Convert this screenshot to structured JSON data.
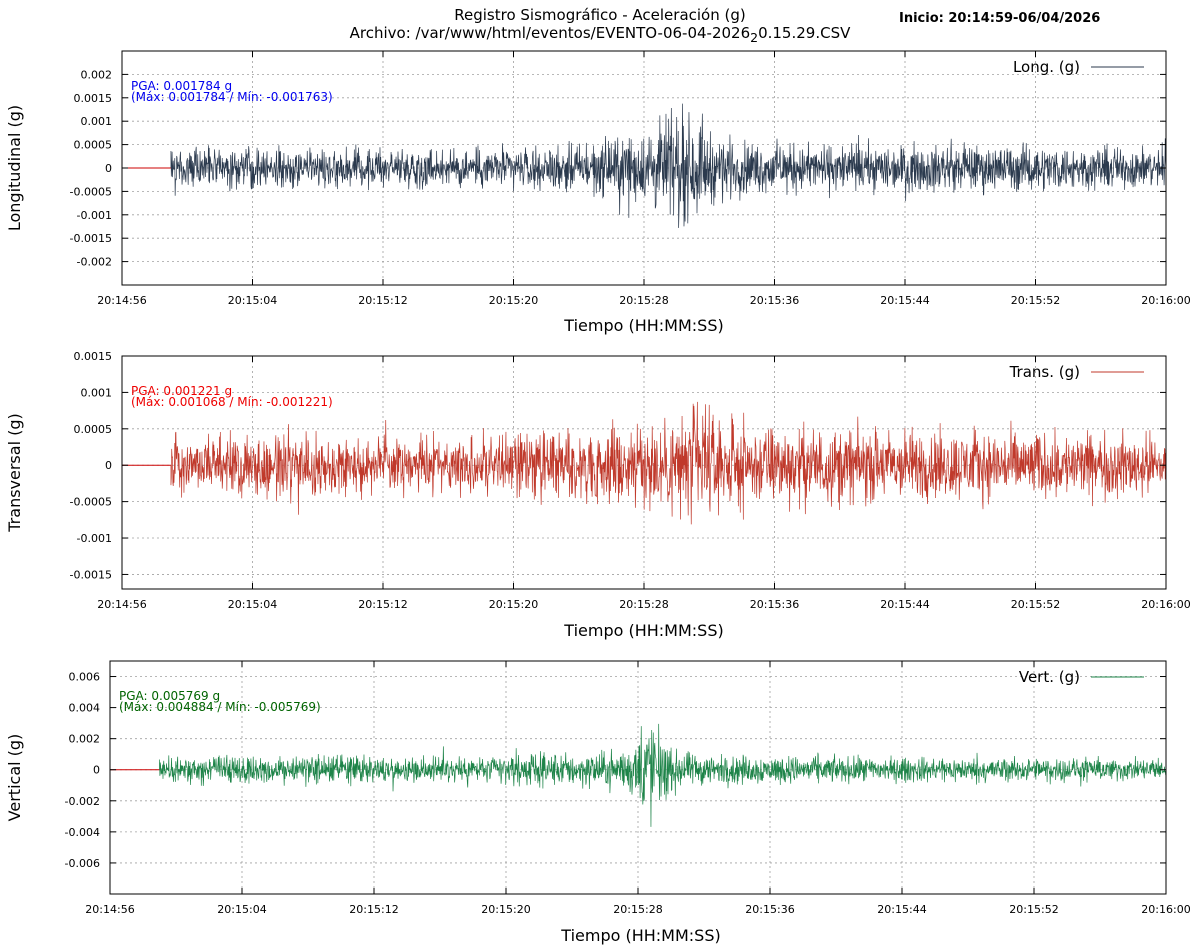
{
  "header": {
    "title_line1": "Registro Sismográfico - Aceleración (g)",
    "title_line2_main": "Archivo: /var/www/html/eventos/EVENTO-06-04-2026",
    "title_line2_sub": "2",
    "title_line2_tail": "0.15.29.CSV",
    "start_label": "Inicio: 20:14:59-06/04/2026"
  },
  "colors": {
    "longitudinal": "#2b3a4e",
    "transversal": "#c0392b",
    "vertical": "#1e8449",
    "pre_event": "#cc0000",
    "long_annotation": "#0000ee",
    "trans_annotation": "#ee0000",
    "vert_annotation": "#006400"
  },
  "chart_data": [
    {
      "type": "line",
      "name_key": "longitudinal",
      "ylabel": "Longitudinal (g)",
      "xlabel": "Tiempo (HH:MM:SS)",
      "legend": "Long. (g)",
      "legend_position": "top-right",
      "annotation_pga": "PGA: 0.001784 g",
      "annotation_range": "(Máx: 0.001784 / Mín: -0.001763)",
      "pga": 0.001784,
      "max": 0.001784,
      "min": -0.001763,
      "ylim": [
        -0.0025,
        0.0025
      ],
      "yticks": [
        "0.002",
        "0.0015",
        "0.001",
        "0.0005",
        "0",
        "-0.0005",
        "-0.001",
        "-0.0015",
        "-0.002"
      ],
      "ytick_values": [
        0.002,
        0.0015,
        0.001,
        0.0005,
        0,
        -0.0005,
        -0.001,
        -0.0015,
        -0.002
      ],
      "xticks": [
        "20:14:56",
        "20:15:04",
        "20:15:12",
        "20:15:20",
        "20:15:28",
        "20:15:36",
        "20:15:44",
        "20:15:52",
        "20:16:00"
      ],
      "xlim": [
        "20:14:56",
        "20:16:00"
      ],
      "signal_start": "20:14:59",
      "grid": true,
      "envelope": {
        "t": [
          "20:14:59",
          "20:15:06",
          "20:15:12",
          "20:15:18",
          "20:15:22",
          "20:15:25",
          "20:15:28",
          "20:15:30",
          "20:15:31",
          "20:15:32",
          "20:15:34",
          "20:15:38",
          "20:15:44",
          "20:15:50",
          "20:16:00"
        ],
        "amplitude": [
          0.0006,
          0.0006,
          0.00055,
          0.0006,
          0.0006,
          0.0008,
          0.0011,
          0.0017,
          0.0015,
          0.0011,
          0.0008,
          0.0007,
          0.0007,
          0.0007,
          0.0006
        ]
      }
    },
    {
      "type": "line",
      "name_key": "transversal",
      "ylabel": "Transversal (g)",
      "xlabel": "Tiempo (HH:MM:SS)",
      "legend": "Trans. (g)",
      "legend_position": "top-right",
      "annotation_pga": "PGA: 0.001221 g",
      "annotation_range": "(Máx: 0.001068 / Mín: -0.001221)",
      "pga": 0.001221,
      "max": 0.001068,
      "min": -0.001221,
      "ylim": [
        -0.0017,
        0.0015
      ],
      "yticks": [
        "0.0015",
        "0.001",
        "0.0005",
        "0",
        "-0.0005",
        "-0.001",
        "-0.0015"
      ],
      "ytick_values": [
        0.0015,
        0.001,
        0.0005,
        0,
        -0.0005,
        -0.001,
        -0.0015
      ],
      "xticks": [
        "20:14:56",
        "20:15:04",
        "20:15:12",
        "20:15:20",
        "20:15:28",
        "20:15:36",
        "20:15:44",
        "20:15:52",
        "20:16:00"
      ],
      "xlim": [
        "20:14:56",
        "20:16:00"
      ],
      "signal_start": "20:14:59",
      "grid": true,
      "envelope": {
        "t": [
          "20:14:59",
          "20:15:06",
          "20:15:12",
          "20:15:18",
          "20:15:24",
          "20:15:28",
          "20:15:30",
          "20:15:31",
          "20:15:33",
          "20:15:38",
          "20:15:44",
          "20:15:50",
          "20:16:00"
        ],
        "amplitude": [
          0.00055,
          0.0006,
          0.0005,
          0.00055,
          0.0007,
          0.0008,
          0.00105,
          0.0012,
          0.0008,
          0.00075,
          0.0007,
          0.00065,
          0.0006
        ]
      }
    },
    {
      "type": "line",
      "name_key": "vertical",
      "ylabel": "Vertical (g)",
      "xlabel": "Tiempo (HH:MM:SS)",
      "legend": "Vert. (g)",
      "legend_position": "top-right",
      "annotation_pga": "PGA: 0.005769 g",
      "annotation_range": "(Máx: 0.004884 / Mín: -0.005769)",
      "pga": 0.005769,
      "max": 0.004884,
      "min": -0.005769,
      "ylim": [
        -0.008,
        0.007
      ],
      "yticks": [
        "0.006",
        "0.004",
        "0.002",
        "0",
        "-0.002",
        "-0.004",
        "-0.006"
      ],
      "ytick_values": [
        0.006,
        0.004,
        0.002,
        0,
        -0.002,
        -0.004,
        -0.006
      ],
      "xticks": [
        "20:14:56",
        "20:15:04",
        "20:15:12",
        "20:15:20",
        "20:15:28",
        "20:15:36",
        "20:15:44",
        "20:15:52",
        "20:16:00"
      ],
      "xlim": [
        "20:14:56",
        "20:16:00"
      ],
      "signal_start": "20:14:59",
      "grid": true,
      "envelope": {
        "t": [
          "20:14:59",
          "20:15:06",
          "20:15:10",
          "20:15:14",
          "20:15:20",
          "20:15:26",
          "20:15:28",
          "20:15:28.6",
          "20:15:29.3",
          "20:15:30",
          "20:15:32",
          "20:15:40",
          "20:15:50",
          "20:16:00"
        ],
        "amplitude": [
          0.0012,
          0.0013,
          0.0014,
          0.0011,
          0.0014,
          0.0016,
          0.0025,
          0.0055,
          0.0035,
          0.0018,
          0.0014,
          0.0012,
          0.0011,
          0.001
        ]
      }
    }
  ]
}
